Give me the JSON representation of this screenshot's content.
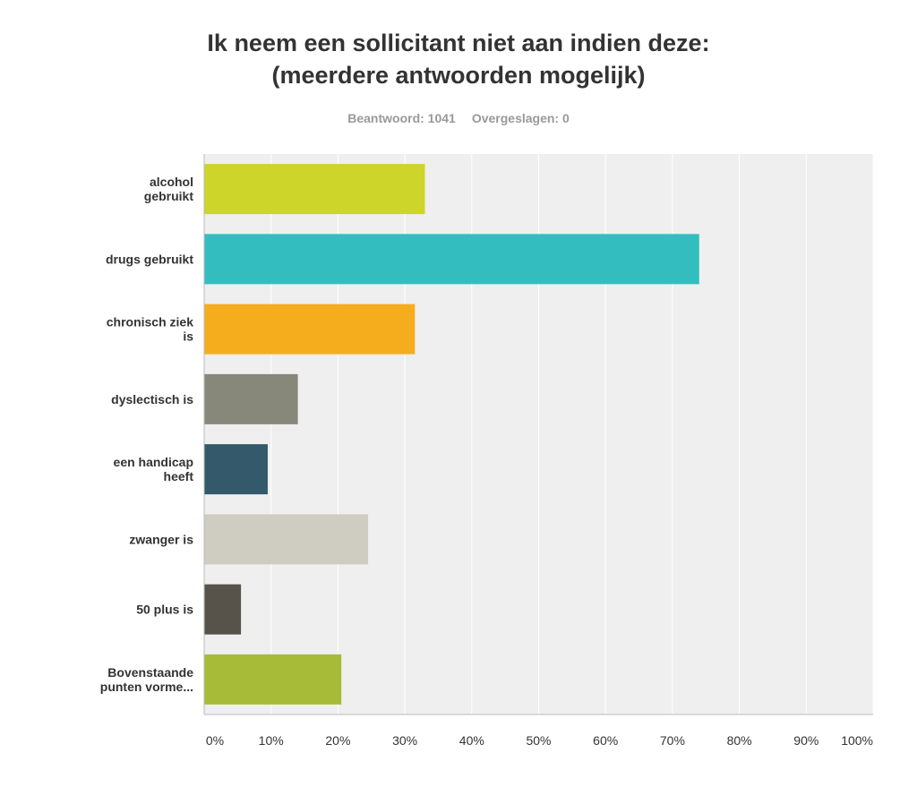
{
  "header": {
    "title_line1": "Ik neem een sollicitant niet aan indien deze:",
    "title_line2": "(meerdere antwoorden mogelijk)",
    "answered": "Beantwoord: 1041",
    "skipped": "Overgeslagen: 0"
  },
  "chart_data": {
    "type": "bar",
    "orientation": "horizontal",
    "title": "Ik neem een sollicitant niet aan indien deze: (meerdere antwoorden mogelijk)",
    "categories": [
      [
        "alcohol",
        "gebruikt"
      ],
      [
        "drugs gebruikt"
      ],
      [
        "chronisch ziek",
        "is"
      ],
      [
        "dyslectisch is"
      ],
      [
        "een handicap",
        "heeft"
      ],
      [
        "zwanger is"
      ],
      [
        "50 plus is"
      ],
      [
        "Bovenstaande",
        "punten vorme..."
      ]
    ],
    "values": [
      33,
      74,
      31.5,
      14,
      9.5,
      24.5,
      5.5,
      20.5
    ],
    "colors": [
      "#cdd42a",
      "#34bdbf",
      "#f5ad1e",
      "#87877a",
      "#33596b",
      "#cfcdc1",
      "#57524a",
      "#a7bb38"
    ],
    "xlim": [
      0,
      100
    ],
    "ticks": [
      "0%",
      "10%",
      "20%",
      "30%",
      "40%",
      "50%",
      "60%",
      "70%",
      "80%",
      "90%",
      "100%"
    ],
    "grid": true,
    "plot_background": "#efefef"
  }
}
